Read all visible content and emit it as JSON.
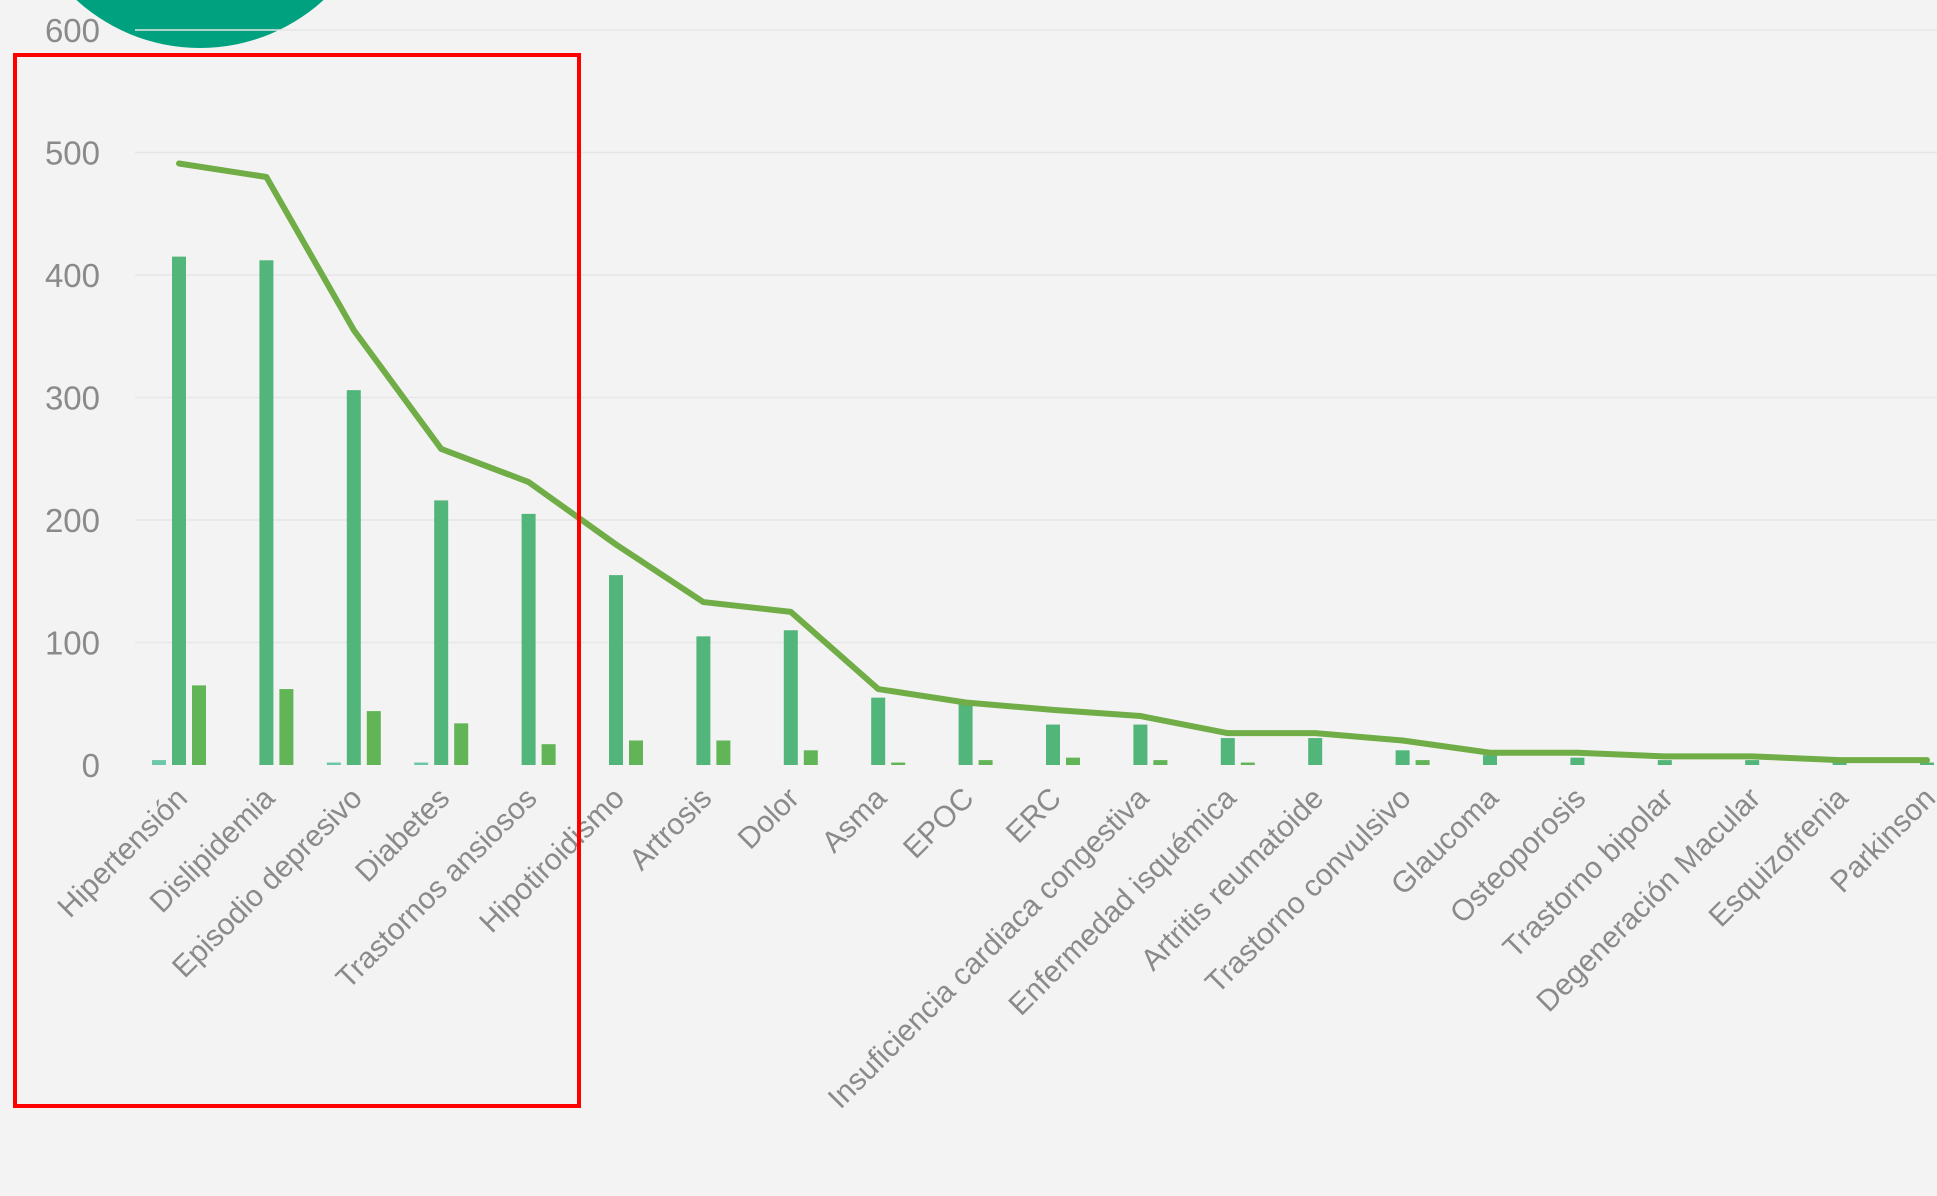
{
  "chart_data": {
    "type": "bar",
    "categories": [
      "Hipertensión",
      "Dislipidemia",
      "Episodio depresivo",
      "Diabetes",
      "Trastornos ansiosos",
      "Hipotiroidismo",
      "Artrosis",
      "Dolor",
      "Asma",
      "EPOC",
      "ERC",
      "Insuficiencia cardiaca congestiva",
      "Enfermedad isquémica",
      "Artritis reumatoide",
      "Trastorno convulsivo",
      "Glaucoma",
      "Osteoporosis",
      "Trastorno bipolar",
      "Degeneración Macular",
      "Esquizofrenia",
      "Parkinson"
    ],
    "series": [
      {
        "type": "bar",
        "values": [
          4,
          0,
          2,
          2,
          0,
          0,
          0,
          0,
          0,
          0,
          0,
          0,
          0,
          0,
          0,
          0,
          0,
          0,
          0,
          0,
          0
        ]
      },
      {
        "type": "bar",
        "values": [
          415,
          412,
          306,
          216,
          205,
          155,
          105,
          110,
          55,
          50,
          33,
          33,
          22,
          22,
          12,
          8,
          6,
          4,
          4,
          2,
          2
        ]
      },
      {
        "type": "bar",
        "values": [
          65,
          62,
          44,
          34,
          17,
          20,
          20,
          12,
          2,
          4,
          6,
          4,
          2,
          0,
          4,
          0,
          0,
          0,
          0,
          0,
          0
        ]
      },
      {
        "type": "line",
        "values": [
          491,
          480,
          355,
          258,
          231,
          180,
          133,
          125,
          62,
          51,
          45,
          40,
          26,
          26,
          20,
          10,
          10,
          7,
          7,
          4,
          4
        ]
      }
    ],
    "colors": {
      "bar_secondary": "#6bc7a7",
      "bar_primary": "#52b57a",
      "bar_tertiary": "#62b556",
      "line": "#70ad47",
      "gridline": "#e6e6e6",
      "highlight_box": "#ff0000",
      "decor_circle": "#00a17e"
    },
    "yticks": [
      "0",
      "100",
      "200",
      "300",
      "400",
      "500",
      "600"
    ],
    "ylim": [
      0,
      600
    ],
    "grid": true,
    "title": "",
    "xlabel": "",
    "ylabel": ""
  }
}
